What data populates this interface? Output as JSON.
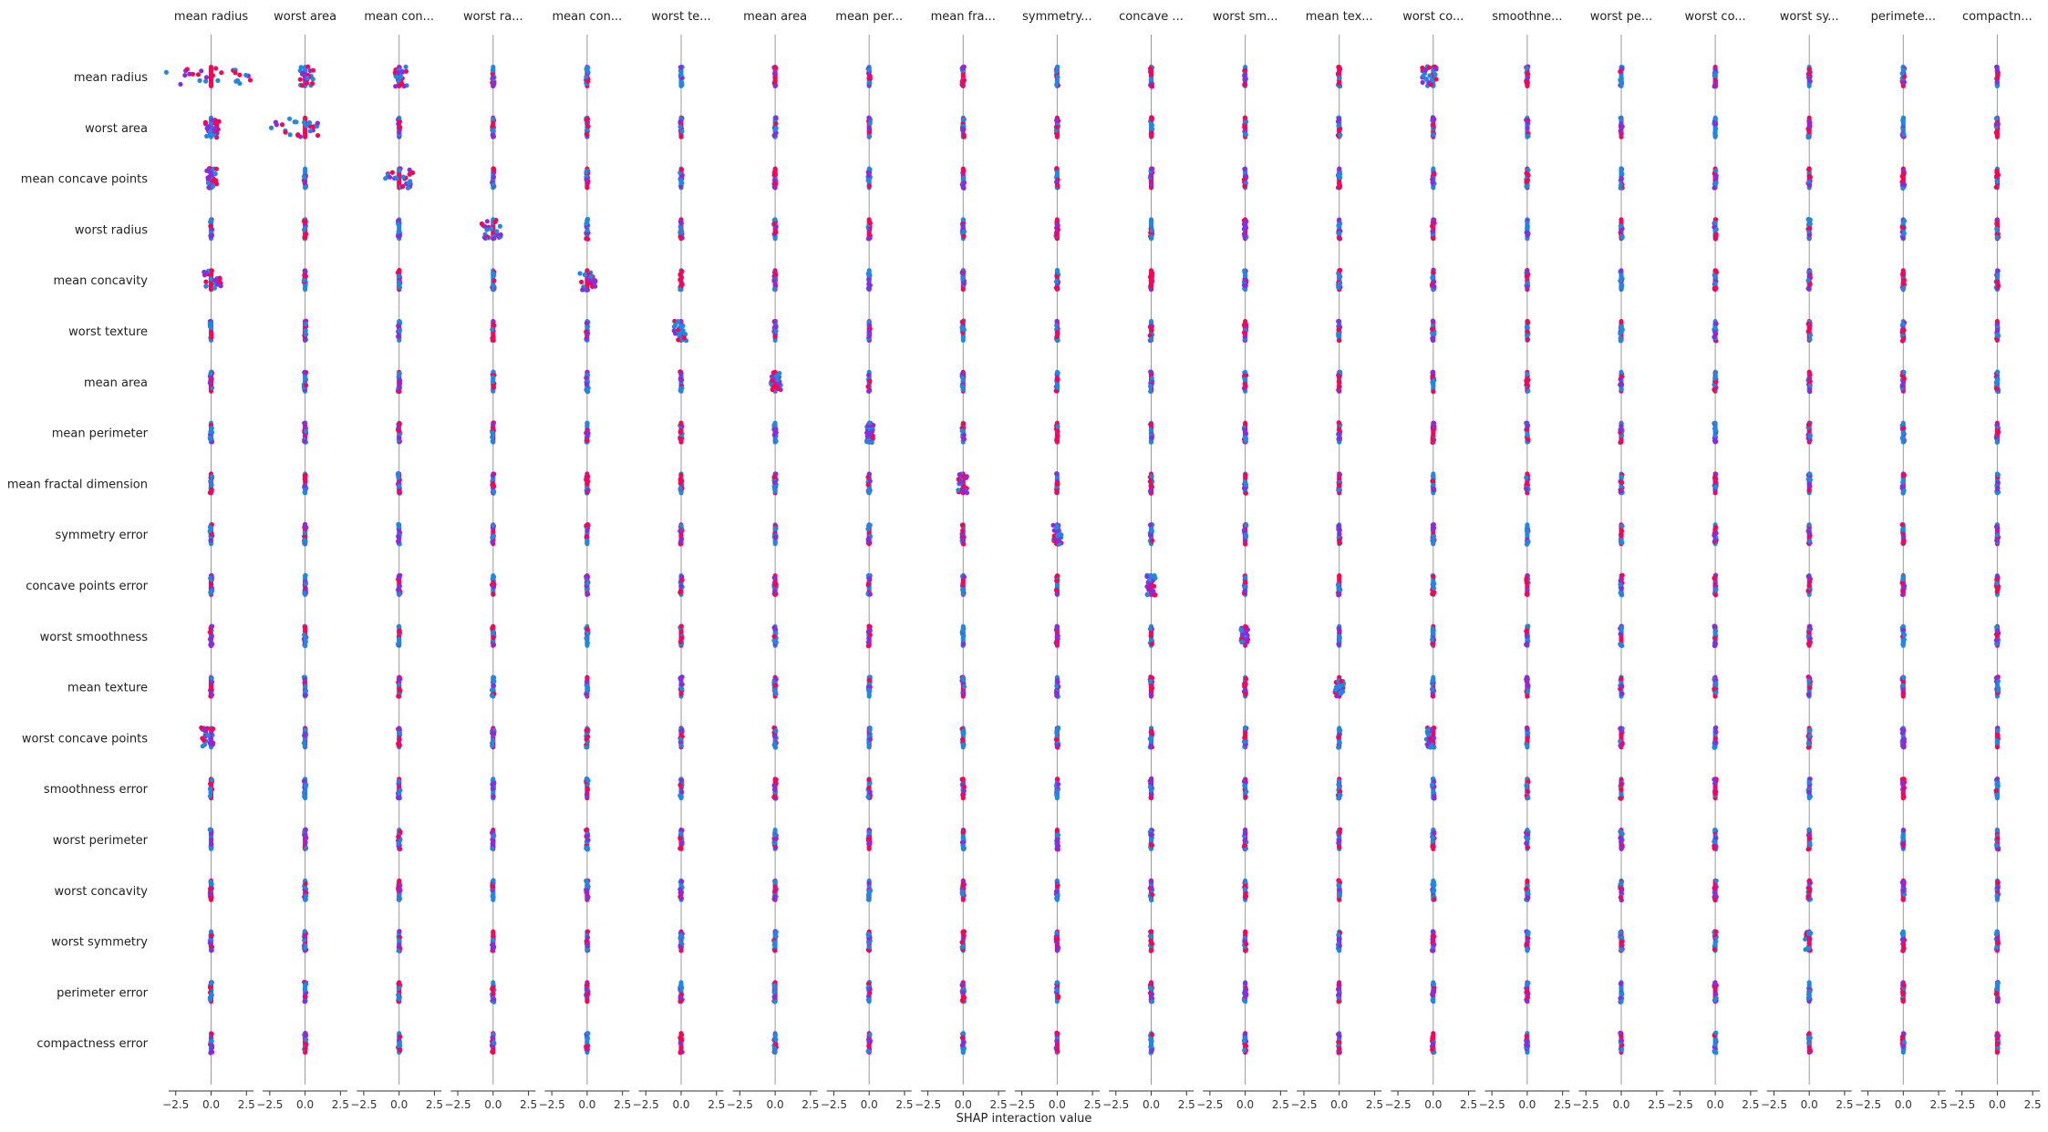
{
  "chart_data": {
    "type": "scatter",
    "subtype": "shap-interaction-summary-matrix",
    "title": "",
    "xlabel": "SHAP interaction value",
    "xlim": [
      -3.0,
      3.0
    ],
    "xticks": [
      -2.5,
      0.0,
      2.5
    ],
    "xtick_labels": [
      "−2.5",
      "0.0",
      "2.5"
    ],
    "column_titles": [
      "mean radius",
      "worst area",
      "mean con...",
      "worst ra...",
      "mean con...",
      "worst te...",
      "mean area",
      "mean per...",
      "mean fra...",
      "symmetry...",
      "concave ...",
      "worst sm...",
      "mean tex...",
      "worst co...",
      "smoothne...",
      "worst pe...",
      "worst co...",
      "worst sy...",
      "perimete...",
      "compactn..."
    ],
    "row_labels": [
      "mean radius",
      "worst area",
      "mean concave points",
      "worst radius",
      "mean concavity",
      "worst texture",
      "mean area",
      "mean perimeter",
      "mean fractal dimension",
      "symmetry error",
      "concave points error",
      "worst smoothness",
      "mean texture",
      "worst concave points",
      "smoothness error",
      "worst perimeter",
      "worst concavity",
      "worst symmetry",
      "perimeter error",
      "compactness error"
    ],
    "grid": false,
    "legend": "none",
    "colors": {
      "high": "#ff0052",
      "mid": "#8a2be2",
      "low": "#1e88e5",
      "zero_line": "#999999"
    },
    "notable_spreads": [
      {
        "row": "mean radius",
        "col": "mean radius",
        "range": [
          -3.2,
          2.8
        ]
      },
      {
        "row": "worst area",
        "col": "worst area",
        "range": [
          -2.4,
          1.1
        ]
      },
      {
        "row": "mean concave points",
        "col": "mean con...",
        "range": [
          -1.0,
          1.0
        ]
      },
      {
        "row": "worst radius",
        "col": "worst ra...",
        "range": [
          -0.8,
          0.6
        ]
      },
      {
        "row": "mean concavity",
        "col": "mean con...",
        "range": [
          -0.6,
          0.6
        ]
      },
      {
        "row": "worst texture",
        "col": "worst te...",
        "range": [
          -0.5,
          0.4
        ]
      },
      {
        "row": "mean area",
        "col": "mean area",
        "range": [
          -0.3,
          0.4
        ]
      },
      {
        "row": "mean perimeter",
        "col": "mean per...",
        "range": [
          -0.2,
          0.3
        ]
      },
      {
        "row": "mean fractal dimension",
        "col": "mean fra...",
        "range": [
          -0.4,
          0.3
        ]
      },
      {
        "row": "symmetry error",
        "col": "symmetry...",
        "range": [
          -0.3,
          0.3
        ]
      },
      {
        "row": "concave points error",
        "col": "concave ...",
        "range": [
          -0.3,
          0.3
        ]
      },
      {
        "row": "worst smoothness",
        "col": "worst sm...",
        "range": [
          -0.3,
          0.2
        ]
      },
      {
        "row": "mean texture",
        "col": "mean tex...",
        "range": [
          -0.3,
          0.3
        ]
      },
      {
        "row": "worst concave points",
        "col": "worst co...",
        "range": [
          -0.5,
          0.1
        ]
      },
      {
        "row": "worst symmetry",
        "col": "worst sy...",
        "range": [
          -0.3,
          0.1
        ]
      },
      {
        "row": "mean radius",
        "col": "worst area",
        "range": [
          -0.4,
          0.6
        ]
      },
      {
        "row": "worst area",
        "col": "mean radius",
        "range": [
          -0.4,
          0.6
        ]
      },
      {
        "row": "mean concave points",
        "col": "mean radius",
        "range": [
          -0.4,
          0.4
        ]
      },
      {
        "row": "mean concavity",
        "col": "mean radius",
        "range": [
          -0.5,
          0.7
        ]
      },
      {
        "row": "worst concave points",
        "col": "mean radius",
        "range": [
          -0.7,
          0.2
        ]
      },
      {
        "row": "mean radius",
        "col": "mean con...",
        "range": [
          -0.3,
          0.6
        ]
      },
      {
        "row": "mean radius",
        "col": "worst co...",
        "range": [
          -0.8,
          0.3
        ]
      }
    ]
  }
}
